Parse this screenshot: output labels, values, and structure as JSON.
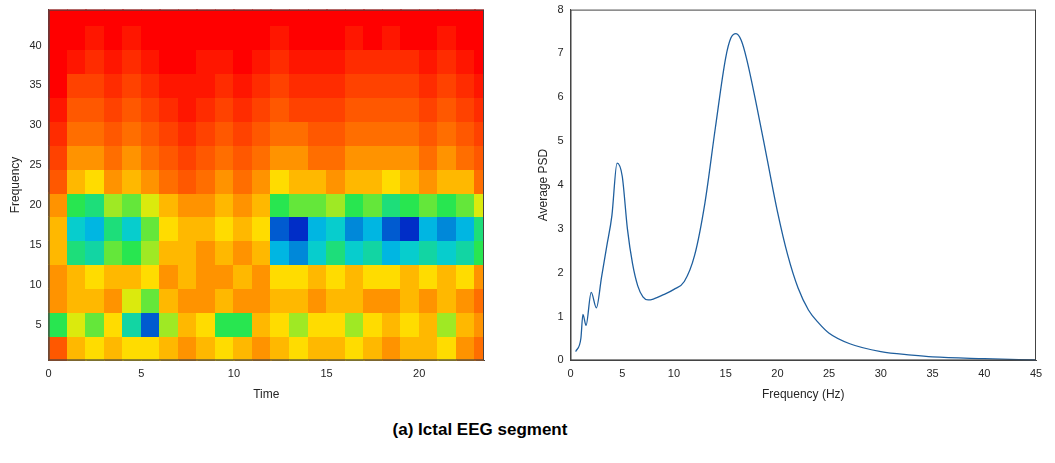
{
  "chart_data": [
    {
      "type": "heatmap",
      "x_label": "Time",
      "y_label": "Frequency",
      "x": [
        0.5,
        1.5,
        2.5,
        3.5,
        4.5,
        5.5,
        6.5,
        7.5,
        8.5,
        9.5,
        10.5,
        11.5,
        12.5,
        13.5,
        14.5,
        15.5,
        16.5,
        17.5,
        18.5,
        19.5,
        20.5,
        21.5,
        22.5,
        23.5
      ],
      "y": [
        2,
        5,
        8,
        11,
        14,
        17,
        20,
        23,
        26,
        29,
        32,
        35,
        38,
        41,
        44
      ],
      "cells": [
        [
          0.2,
          0.35,
          0.4,
          0.35,
          0.4,
          0.4,
          0.35,
          0.3,
          0.35,
          0.4,
          0.35,
          0.3,
          0.35,
          0.4,
          0.35,
          0.35,
          0.4,
          0.35,
          0.3,
          0.35,
          0.35,
          0.4,
          0.3,
          0.25
        ],
        [
          0.6,
          0.45,
          0.55,
          0.4,
          0.7,
          0.9,
          0.5,
          0.35,
          0.4,
          0.6,
          0.6,
          0.35,
          0.4,
          0.5,
          0.4,
          0.4,
          0.5,
          0.4,
          0.35,
          0.4,
          0.35,
          0.5,
          0.35,
          0.3
        ],
        [
          0.3,
          0.35,
          0.35,
          0.3,
          0.45,
          0.55,
          0.35,
          0.3,
          0.3,
          0.35,
          0.3,
          0.3,
          0.35,
          0.35,
          0.3,
          0.35,
          0.35,
          0.3,
          0.3,
          0.35,
          0.3,
          0.35,
          0.3,
          0.25
        ],
        [
          0.3,
          0.35,
          0.4,
          0.35,
          0.35,
          0.4,
          0.3,
          0.35,
          0.3,
          0.3,
          0.35,
          0.3,
          0.4,
          0.4,
          0.35,
          0.4,
          0.35,
          0.4,
          0.4,
          0.35,
          0.4,
          0.35,
          0.4,
          0.3
        ],
        [
          0.35,
          0.65,
          0.7,
          0.55,
          0.6,
          0.5,
          0.35,
          0.35,
          0.3,
          0.35,
          0.3,
          0.35,
          0.8,
          0.85,
          0.75,
          0.65,
          0.75,
          0.7,
          0.8,
          0.75,
          0.7,
          0.75,
          0.7,
          0.6
        ],
        [
          0.35,
          0.75,
          0.8,
          0.65,
          0.75,
          0.55,
          0.4,
          0.35,
          0.35,
          0.4,
          0.35,
          0.4,
          0.9,
          0.95,
          0.8,
          0.75,
          0.85,
          0.8,
          0.9,
          0.95,
          0.8,
          0.85,
          0.8,
          0.65
        ],
        [
          0.3,
          0.6,
          0.65,
          0.5,
          0.55,
          0.45,
          0.35,
          0.3,
          0.3,
          0.35,
          0.3,
          0.35,
          0.6,
          0.55,
          0.55,
          0.5,
          0.6,
          0.55,
          0.65,
          0.6,
          0.55,
          0.6,
          0.55,
          0.45
        ],
        [
          0.2,
          0.35,
          0.4,
          0.3,
          0.35,
          0.3,
          0.25,
          0.2,
          0.25,
          0.3,
          0.25,
          0.3,
          0.4,
          0.35,
          0.35,
          0.3,
          0.35,
          0.35,
          0.4,
          0.35,
          0.3,
          0.35,
          0.35,
          0.25
        ],
        [
          0.15,
          0.3,
          0.3,
          0.25,
          0.3,
          0.25,
          0.2,
          0.15,
          0.2,
          0.25,
          0.2,
          0.25,
          0.3,
          0.3,
          0.25,
          0.25,
          0.3,
          0.3,
          0.3,
          0.3,
          0.25,
          0.3,
          0.25,
          0.2
        ],
        [
          0.1,
          0.25,
          0.25,
          0.2,
          0.25,
          0.2,
          0.15,
          0.1,
          0.15,
          0.2,
          0.15,
          0.2,
          0.25,
          0.25,
          0.2,
          0.2,
          0.25,
          0.25,
          0.25,
          0.25,
          0.2,
          0.25,
          0.2,
          0.15
        ],
        [
          0.05,
          0.2,
          0.2,
          0.15,
          0.2,
          0.15,
          0.1,
          0.05,
          0.1,
          0.15,
          0.1,
          0.15,
          0.2,
          0.15,
          0.15,
          0.15,
          0.2,
          0.2,
          0.2,
          0.2,
          0.15,
          0.2,
          0.15,
          0.1
        ],
        [
          0,
          0.15,
          0.15,
          0.1,
          0.15,
          0.1,
          0.05,
          0.05,
          0.05,
          0.1,
          0.05,
          0.1,
          0.15,
          0.1,
          0.1,
          0.1,
          0.15,
          0.15,
          0.15,
          0.15,
          0.1,
          0.15,
          0.1,
          0.05
        ],
        [
          0,
          0.05,
          0.1,
          0.05,
          0.1,
          0.05,
          0,
          0,
          0.05,
          0.05,
          0,
          0.05,
          0.1,
          0.05,
          0.05,
          0.05,
          0.1,
          0.1,
          0.1,
          0.1,
          0.05,
          0.1,
          0.05,
          0
        ],
        [
          0,
          0,
          0.05,
          0,
          0.05,
          0,
          0,
          0,
          0,
          0,
          0,
          0,
          0.05,
          0,
          0,
          0,
          0.05,
          0,
          0.05,
          0,
          0,
          0.05,
          0,
          0
        ],
        [
          0,
          0,
          0,
          0,
          0,
          0,
          0,
          0,
          0,
          0,
          0,
          0,
          0,
          0,
          0,
          0,
          0,
          0,
          0,
          0,
          0,
          0,
          0,
          0
        ]
      ],
      "color_range": [
        0,
        1
      ],
      "xlim": [
        0,
        23.5
      ],
      "xticks": [
        0,
        5,
        10,
        15,
        20
      ],
      "ylim": [
        0.5,
        44.5
      ],
      "yticks": [
        5,
        10,
        15,
        20,
        25,
        30,
        35,
        40
      ],
      "grid": false
    },
    {
      "type": "line",
      "x_label": "Frequency (Hz)",
      "y_label": "Average PSD",
      "x": [
        0.5,
        1,
        1.2,
        1.5,
        2,
        2.5,
        3,
        3.5,
        4,
        4.5,
        5,
        5.5,
        6,
        6.5,
        7,
        7.5,
        8,
        9,
        10,
        11,
        12,
        13,
        14,
        15,
        15.5,
        16,
        16.5,
        17,
        18,
        19,
        20,
        21,
        22,
        23,
        24,
        25,
        27,
        30,
        33,
        35,
        40,
        45
      ],
      "values": [
        0.2,
        0.5,
        1.05,
        0.8,
        1.55,
        1.2,
        1.9,
        2.6,
        3.3,
        4.5,
        4.2,
        3.0,
        2.2,
        1.7,
        1.45,
        1.38,
        1.4,
        1.5,
        1.62,
        1.8,
        2.4,
        3.6,
        5.3,
        6.9,
        7.35,
        7.45,
        7.3,
        6.9,
        5.8,
        4.6,
        3.4,
        2.4,
        1.65,
        1.15,
        0.85,
        0.62,
        0.38,
        0.2,
        0.12,
        0.08,
        0.04,
        0.01
      ],
      "color": "#1f5f9e",
      "xlim": [
        0,
        45
      ],
      "xticks": [
        0,
        5,
        10,
        15,
        20,
        25,
        30,
        35,
        40,
        45
      ],
      "ylim": [
        0,
        8
      ],
      "yticks": [
        0,
        1,
        2,
        3,
        4,
        5,
        6,
        7,
        8
      ],
      "grid": false
    }
  ],
  "caption": "(a) Ictal EEG segment"
}
